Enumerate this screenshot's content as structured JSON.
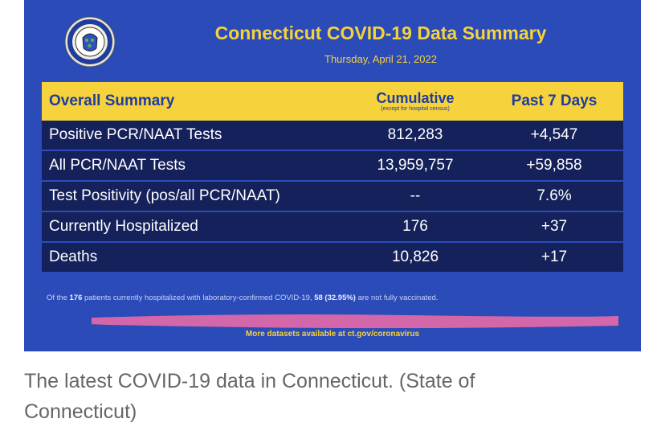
{
  "header": {
    "title": "Connecticut COVID-19 Data Summary",
    "date": "Thursday, April 21, 2022",
    "seal_text": "STATE OF CONNECTICUT"
  },
  "table": {
    "col1_header": "Overall Summary",
    "col2_header": "Cumulative",
    "col2_subheader": "(except for hospital census)",
    "col3_header": "Past 7 Days",
    "rows": [
      {
        "label": "Positive PCR/NAAT Tests",
        "cumulative": "812,283",
        "past7": "+4,547"
      },
      {
        "label": "All PCR/NAAT Tests",
        "cumulative": "13,959,757",
        "past7": "+59,858"
      },
      {
        "label": "Test Positivity (pos/all PCR/NAAT)",
        "cumulative": "--",
        "past7": "7.6%"
      },
      {
        "label": "Currently Hospitalized",
        "cumulative": "176",
        "past7": "+37"
      },
      {
        "label": "Deaths",
        "cumulative": "10,826",
        "past7": "+17"
      }
    ]
  },
  "note": {
    "prefix": "Of the ",
    "count": "176",
    "middle": " patients currently hospitalized with laboratory-confirmed COVID-19, ",
    "unvax": "58 (32.95%)",
    "suffix": " are not fully vaccinated."
  },
  "footer_link": "More datasets available at ct.gov/coronavirus",
  "caption": "The latest COVID-19 data in Connecticut.  (State of Connecticut)",
  "colors": {
    "panel": "#2a4bb8",
    "accent_yellow": "#f6d23c",
    "row_navy": "#15215a",
    "scribble": "#e66aa8",
    "caption_gray": "#666666"
  }
}
